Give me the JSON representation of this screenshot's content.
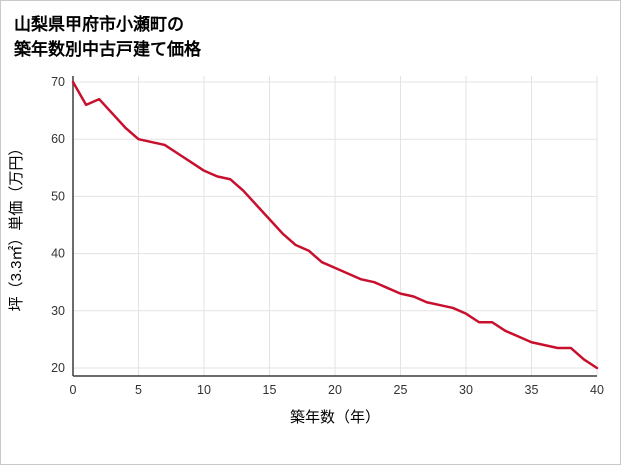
{
  "header": {
    "title_line1": "山梨県甲府市小瀬町の",
    "title_line2": "築年数別中古戸建て価格"
  },
  "chart_data": {
    "type": "line",
    "title": "山梨県甲府市小瀬町の築年数別中古戸建て価格",
    "xlabel": "築年数（年）",
    "ylabel": "坪（3.3㎡）単価（万円）",
    "x": [
      0,
      1,
      2,
      3,
      4,
      5,
      6,
      7,
      8,
      9,
      10,
      11,
      12,
      13,
      14,
      15,
      16,
      17,
      18,
      19,
      20,
      21,
      22,
      23,
      24,
      25,
      26,
      27,
      28,
      29,
      30,
      31,
      32,
      33,
      34,
      35,
      36,
      37,
      38,
      39,
      40
    ],
    "values": [
      70,
      66,
      67,
      64.5,
      62,
      60,
      59.5,
      59,
      57.5,
      56,
      54.5,
      53.5,
      53,
      51,
      48.5,
      46,
      43.5,
      41.5,
      40.5,
      38.5,
      37.5,
      36.5,
      35.5,
      35,
      34,
      33,
      32.5,
      31.5,
      31,
      30.5,
      29.5,
      28,
      28,
      26.5,
      25.5,
      24.5,
      24,
      23.5,
      23.5,
      21.5,
      20
    ],
    "xlim": [
      0,
      40
    ],
    "ylim": [
      20,
      70
    ],
    "x_ticks": [
      0,
      5,
      10,
      15,
      20,
      25,
      30,
      35,
      40
    ],
    "y_ticks": [
      20,
      30,
      40,
      50,
      60,
      70
    ],
    "grid": true,
    "legend": "none",
    "colors": {
      "line": "#c8102e",
      "grid": "#e3e3e3",
      "axis": "#3c3c3c",
      "tick_text": "#333333",
      "axis_title_text": "#000000"
    }
  }
}
